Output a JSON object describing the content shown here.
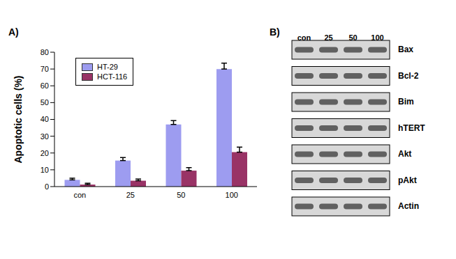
{
  "panel_labels": [
    "A)",
    "B)"
  ],
  "chart_data": {
    "type": "bar",
    "categories": [
      "con",
      "25",
      "50",
      "100"
    ],
    "series": [
      {
        "name": "HT-29",
        "color": "#9d9cf0",
        "values": [
          4,
          15.5,
          37,
          70
        ],
        "errors": [
          1,
          1.8,
          2.3,
          3.5
        ]
      },
      {
        "name": "HCT-116",
        "color": "#993366",
        "values": [
          1.2,
          3.5,
          9.5,
          20.5
        ],
        "errors": [
          0.8,
          1,
          1.8,
          3
        ]
      }
    ],
    "y_label": "Apoptotic cells (%)",
    "ylim": [
      0,
      80
    ],
    "yticks": [
      0,
      10,
      20,
      30,
      40,
      50,
      60,
      70,
      80
    ],
    "grid": false,
    "legend": "upper left"
  },
  "blot": {
    "lanes": [
      "con",
      "25",
      "50",
      "100"
    ],
    "bands": [
      "Bax",
      "Bcl-2",
      "Bim",
      "hTERT",
      "Akt",
      "pAkt",
      "Actin"
    ]
  }
}
